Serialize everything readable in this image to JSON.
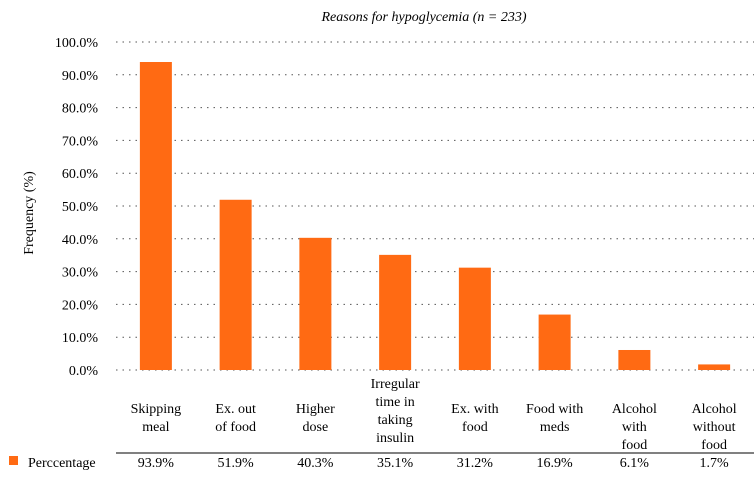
{
  "chart_data": {
    "type": "bar",
    "title": "Reasons for hypoglycemia (n = 233)",
    "ylabel": "Frequency (%)",
    "xlabel": "",
    "ylim": [
      0,
      100
    ],
    "yticks": [
      "0.0%",
      "10.0%",
      "20.0%",
      "30.0%",
      "40.0%",
      "50.0%",
      "60.0%",
      "70.0%",
      "80.0%",
      "90.0%",
      "100.0%"
    ],
    "grid": true,
    "categories": [
      [
        "Skipping",
        "meal"
      ],
      [
        "Ex. out",
        "of food"
      ],
      [
        "Higher",
        "dose"
      ],
      [
        "Irregular",
        "time in",
        "taking",
        "insulin"
      ],
      [
        "Ex. with",
        "food"
      ],
      [
        "Food with",
        "meds"
      ],
      [
        "Alcohol",
        "with",
        "food"
      ],
      [
        "Alcohol",
        "without",
        "food"
      ]
    ],
    "series": [
      {
        "name": "Perccentage",
        "values": [
          93.9,
          51.9,
          40.3,
          35.1,
          31.2,
          16.9,
          6.1,
          1.7
        ],
        "labels": [
          "93.9%",
          "51.9%",
          "40.3%",
          "35.1%",
          "31.2%",
          "16.9%",
          "6.1%",
          "1.7%"
        ],
        "color": "#ff6a13"
      }
    ],
    "legend": "bottom-left (data table)"
  }
}
